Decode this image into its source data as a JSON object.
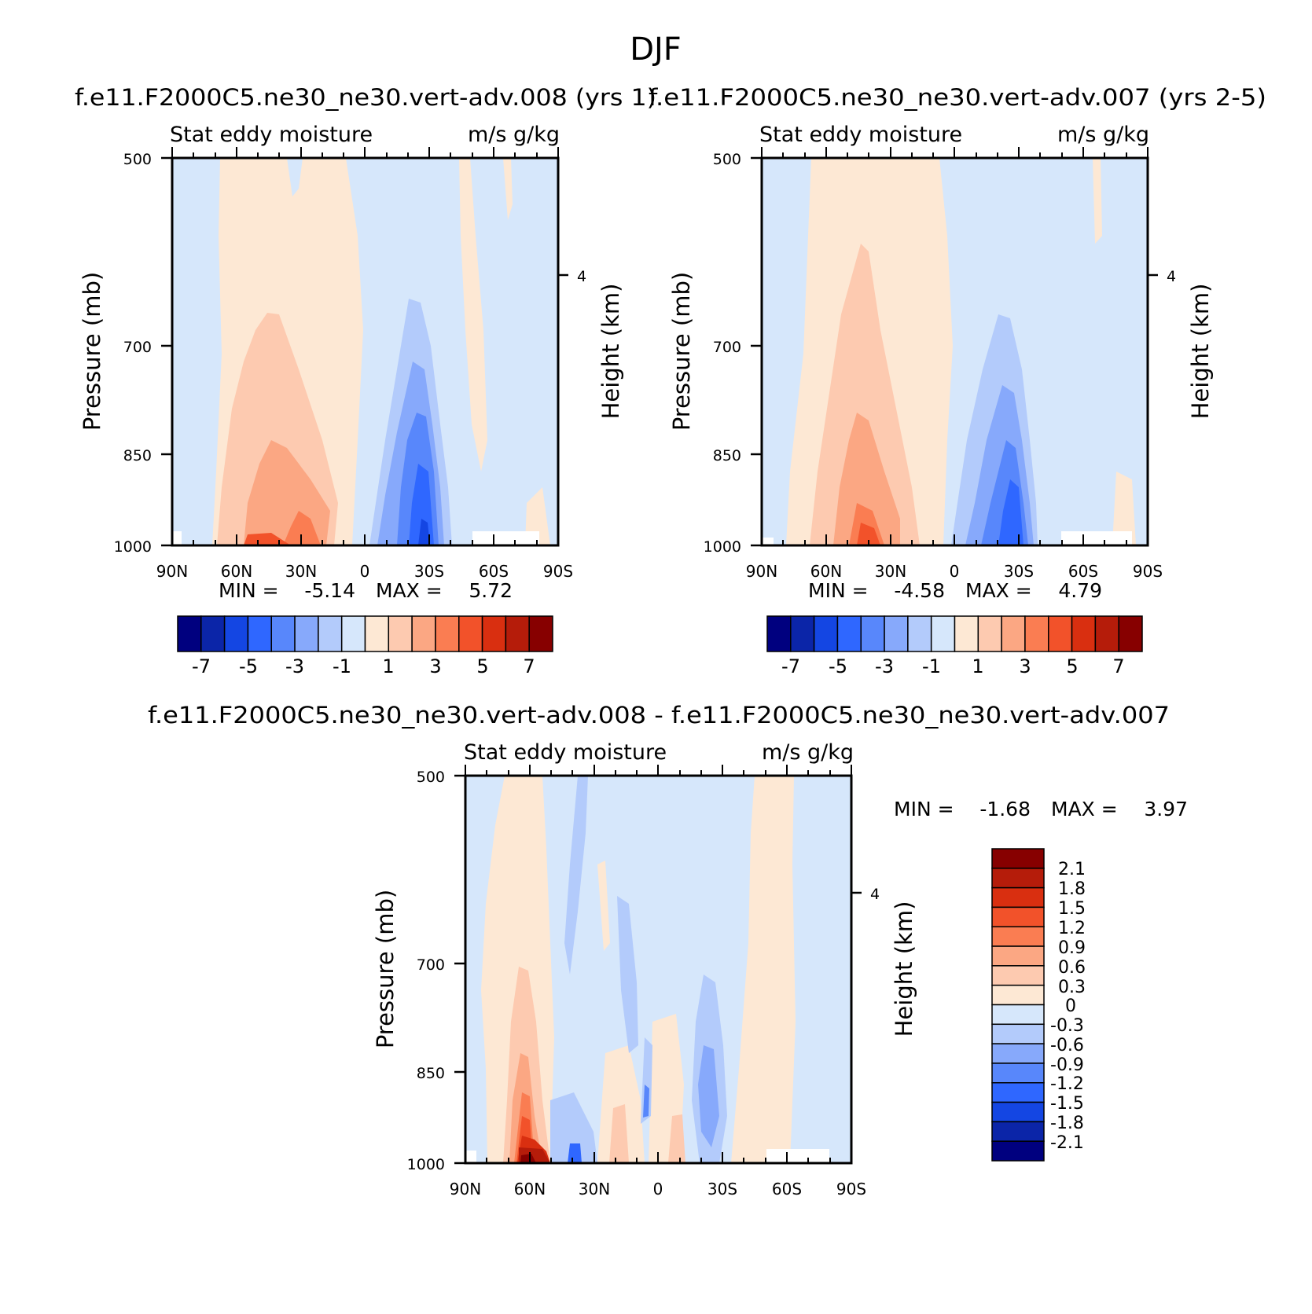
{
  "figure_title": "DJF",
  "colors": {
    "diff_palette": [
      "#00007f",
      "#0b25a8",
      "#1446e3",
      "#2f67ff",
      "#5887fb",
      "#87a9fb",
      "#b3cbfb",
      "#d6e7fb",
      "#fde8d4",
      "#fdcab0",
      "#fba783",
      "#fa7d52",
      "#f2522a",
      "#d92f10",
      "#b51c0a",
      "#870000"
    ],
    "main_palette": [
      "#00007f",
      "#0b25a8",
      "#1446e3",
      "#2f67ff",
      "#5887fb",
      "#87a9fb",
      "#b3cbfb",
      "#d6e7fb",
      "#fde8d4",
      "#fdcab0",
      "#fba783",
      "#fa7d52",
      "#f2522a",
      "#d92f10",
      "#b51c0a",
      "#870000"
    ]
  },
  "panels": [
    {
      "title": "f.e11.F2000C5.ne30_ne30.vert-adv.008 (yrs 1)",
      "variable": "Stat eddy moisture",
      "units": "m/s g/kg",
      "ylabel": "Pressure (mb)",
      "ylabel_right": "Height (km)",
      "yticks": [
        "500",
        "700",
        "850",
        "1000"
      ],
      "right_ticks": [
        "4"
      ],
      "xticks": [
        "90N",
        "60N",
        "30N",
        "0",
        "30S",
        "60S",
        "90S"
      ],
      "min_label": "MIN =",
      "min_value": "-5.14",
      "max_label": "MAX =",
      "max_value": "5.72",
      "colorbar_labels": [
        "-7",
        "-5",
        "-3",
        "-1",
        "1",
        "3",
        "5",
        "7"
      ]
    },
    {
      "title": "f.e11.F2000C5.ne30_ne30.vert-adv.007 (yrs 2-5)",
      "variable": "Stat eddy moisture",
      "units": "m/s g/kg",
      "ylabel": "Pressure (mb)",
      "ylabel_right": "Height (km)",
      "yticks": [
        "500",
        "700",
        "850",
        "1000"
      ],
      "right_ticks": [
        "4"
      ],
      "xticks": [
        "90N",
        "60N",
        "30N",
        "0",
        "30S",
        "60S",
        "90S"
      ],
      "min_label": "MIN =",
      "min_value": "-4.58",
      "max_label": "MAX =",
      "max_value": "4.79",
      "colorbar_labels": [
        "-7",
        "-5",
        "-3",
        "-1",
        "1",
        "3",
        "5",
        "7"
      ]
    },
    {
      "title": "f.e11.F2000C5.ne30_ne30.vert-adv.008 - f.e11.F2000C5.ne30_ne30.vert-adv.007",
      "variable": "Stat eddy moisture",
      "units": "m/s g/kg",
      "ylabel": "Pressure (mb)",
      "ylabel_right": "Height (km)",
      "yticks": [
        "500",
        "700",
        "850",
        "1000"
      ],
      "right_ticks": [
        "4"
      ],
      "xticks": [
        "90N",
        "60N",
        "30N",
        "0",
        "30S",
        "60S",
        "90S"
      ],
      "min_label": "MIN =",
      "min_value": "-1.68",
      "max_label": "MAX =",
      "max_value": "3.97",
      "colorbar_labels": [
        "2.1",
        "1.8",
        "1.5",
        "1.2",
        "0.9",
        "0.6",
        "0.3",
        "0",
        "-0.3",
        "-0.6",
        "-0.9",
        "-1.2",
        "-1.5",
        "-1.8",
        "-2.1"
      ]
    }
  ],
  "chart_data": [
    {
      "type": "heatmap",
      "title": "f.e11.F2000C5.ne30_ne30.vert-adv.008 (yrs 1)",
      "xlabel": "",
      "ylabel": "Pressure (mb)",
      "x_axis": [
        "90N",
        "60N",
        "30N",
        "0",
        "30S",
        "60S",
        "90S"
      ],
      "x_range": [
        90,
        -90
      ],
      "y_range_mb": [
        500,
        1000
      ],
      "min": -5.14,
      "max": 5.72,
      "levels": [
        -7,
        -6,
        -5,
        -4,
        -3,
        -2,
        -1,
        0,
        1,
        2,
        3,
        4,
        5,
        6,
        7
      ]
    },
    {
      "type": "heatmap",
      "title": "f.e11.F2000C5.ne30_ne30.vert-adv.007 (yrs 2-5)",
      "xlabel": "",
      "ylabel": "Pressure (mb)",
      "x_axis": [
        "90N",
        "60N",
        "30N",
        "0",
        "30S",
        "60S",
        "90S"
      ],
      "x_range": [
        90,
        -90
      ],
      "y_range_mb": [
        500,
        1000
      ],
      "min": -4.58,
      "max": 4.79,
      "levels": [
        -7,
        -6,
        -5,
        -4,
        -3,
        -2,
        -1,
        0,
        1,
        2,
        3,
        4,
        5,
        6,
        7
      ]
    },
    {
      "type": "heatmap",
      "title": "f.e11.F2000C5.ne30_ne30.vert-adv.008 - f.e11.F2000C5.ne30_ne30.vert-adv.007",
      "xlabel": "",
      "ylabel": "Pressure (mb)",
      "x_axis": [
        "90N",
        "60N",
        "30N",
        "0",
        "30S",
        "60S",
        "90S"
      ],
      "x_range": [
        90,
        -90
      ],
      "y_range_mb": [
        500,
        1000
      ],
      "min": -1.68,
      "max": 3.97,
      "levels": [
        -2.1,
        -1.8,
        -1.5,
        -1.2,
        -0.9,
        -0.6,
        -0.3,
        0,
        0.3,
        0.6,
        0.9,
        1.2,
        1.5,
        1.8,
        2.1
      ]
    }
  ]
}
